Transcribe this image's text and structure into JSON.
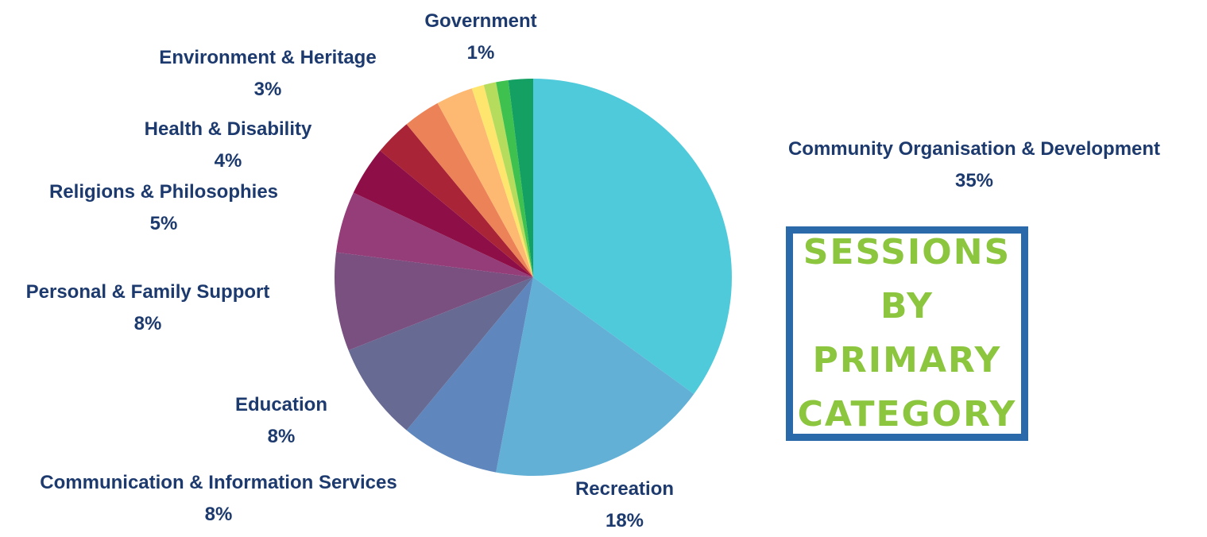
{
  "title": "Sessions by Primary Category",
  "chart_data": {
    "type": "pie",
    "title": "Sessions by Primary Category",
    "slices": [
      {
        "name": "Community Organisation & Development",
        "value": 35,
        "label": "35%",
        "color": "#4ecadb"
      },
      {
        "name": "Recreation",
        "value": 18,
        "label": "18%",
        "color": "#62b0d6"
      },
      {
        "name": "Communication & Information Services",
        "value": 8,
        "label": "8%",
        "color": "#5f87bd"
      },
      {
        "name": "Education",
        "value": 8,
        "label": "8%",
        "color": "#676a93"
      },
      {
        "name": "Personal & Family Support",
        "value": 8,
        "label": "8%",
        "color": "#7a5080"
      },
      {
        "name": "Religions & Philosophies",
        "value": 5,
        "label": "5%",
        "color": "#943d78"
      },
      {
        "name": "Health & Disability",
        "value": 4,
        "label": "4%",
        "color": "#8e0f47"
      },
      {
        "name": "",
        "value": 3,
        "label": "",
        "color": "#a92437"
      },
      {
        "name": "Environment & Heritage",
        "value": 3,
        "label": "3%",
        "color": "#ec8258"
      },
      {
        "name": "",
        "value": 3,
        "label": "",
        "color": "#fdb871"
      },
      {
        "name": "",
        "value": 1,
        "label": "",
        "color": "#fde56e"
      },
      {
        "name": "",
        "value": 1,
        "label": "",
        "color": "#b5dc5c"
      },
      {
        "name": "Government",
        "value": 1,
        "label": "1%",
        "color": "#3fc150"
      },
      {
        "name": "",
        "value": 2,
        "label": "",
        "color": "#14a062"
      }
    ],
    "label_color": "#1d3a6e",
    "title_color": "#8cc63f",
    "title_border_color": "#2a6aaa",
    "legend": "none"
  }
}
